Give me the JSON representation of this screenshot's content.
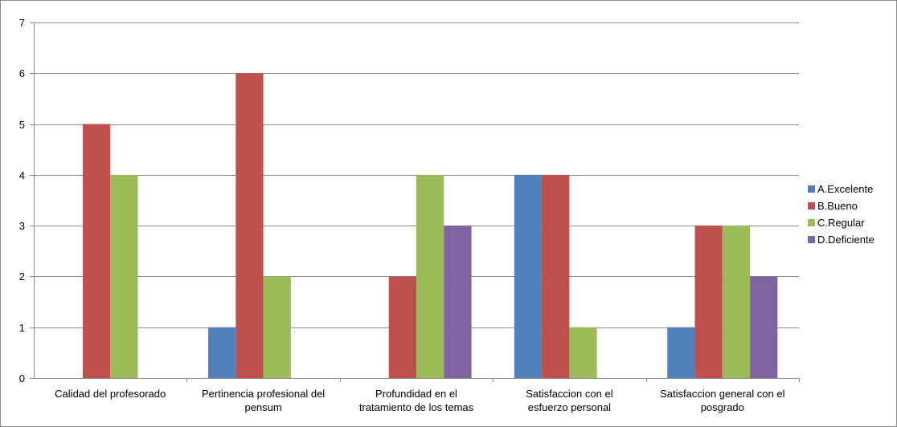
{
  "chart_data": {
    "type": "bar",
    "title": "",
    "xlabel": "",
    "ylabel": "",
    "ylim": [
      0,
      7
    ],
    "yticks": [
      0,
      1,
      2,
      3,
      4,
      5,
      6,
      7
    ],
    "grid": true,
    "legend_position": "right",
    "categories": [
      [
        "Calidad del profesorado"
      ],
      [
        "Pertinencia profesional del",
        "pensum"
      ],
      [
        "Profundidad en el",
        "tratamiento de los temas"
      ],
      [
        "Satisfaccion con el",
        "esfuerzo personal"
      ],
      [
        "Satisfaccion general con el",
        "posgrado"
      ]
    ],
    "series": [
      {
        "name": "A.Excelente",
        "color": "#4F81BD",
        "values": [
          0,
          1,
          0,
          4,
          1
        ]
      },
      {
        "name": "B.Bueno",
        "color": "#C0504D",
        "values": [
          5,
          6,
          2,
          4,
          3
        ]
      },
      {
        "name": "C.Regular",
        "color": "#9BBB59",
        "values": [
          4,
          2,
          4,
          1,
          3
        ]
      },
      {
        "name": "D.Deficiente",
        "color": "#8064A2",
        "values": [
          0,
          0,
          3,
          0,
          2
        ]
      }
    ]
  }
}
